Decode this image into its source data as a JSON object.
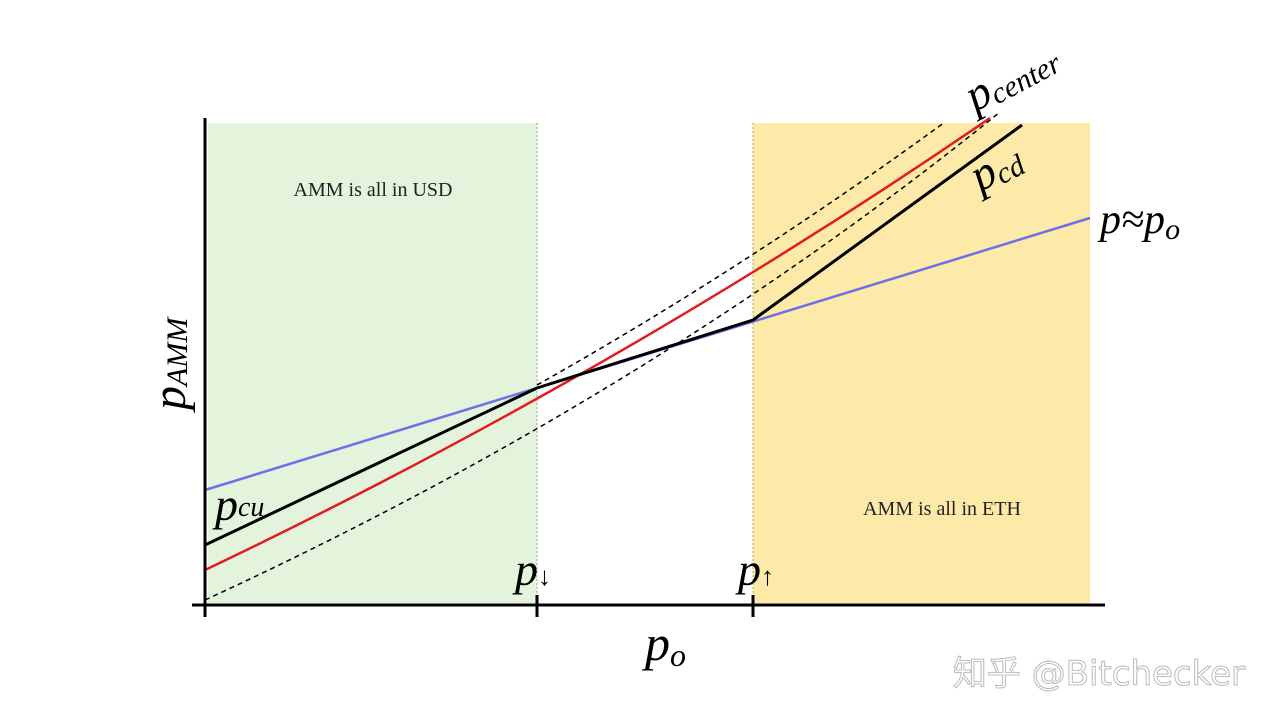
{
  "regions": {
    "left": "AMM is all in USD",
    "right": "AMM is all in ETH"
  },
  "curves": {
    "center": {
      "base": "p",
      "sub": "center"
    },
    "cd": {
      "base": "p",
      "sub": "cd"
    },
    "cu": {
      "base": "p",
      "sub": "cu"
    },
    "approx": {
      "base": "p≈p",
      "sub": "o"
    }
  },
  "axes": {
    "y": {
      "base": "p",
      "sub": "AMM"
    },
    "x": {
      "base": "p",
      "sub": "o"
    },
    "tick_down": {
      "base": "p",
      "sub": "↓"
    },
    "tick_up": {
      "base": "p",
      "sub": "↑"
    }
  },
  "watermark": "知乎 @Bitchecker"
}
